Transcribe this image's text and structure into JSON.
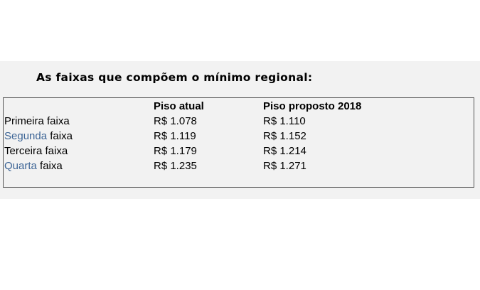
{
  "title": "As faixas que compõem o mínimo regional:",
  "table": {
    "headers": [
      "",
      "Piso atual",
      "Piso proposto 2018"
    ],
    "rows": [
      {
        "link": "",
        "label": "Primeira faixa",
        "atual": "R$ 1.078",
        "proposto": "R$ 1.110"
      },
      {
        "link": "Segunda",
        "label": " faixa",
        "atual": "R$ 1.119",
        "proposto": "R$ 1.152"
      },
      {
        "link": "",
        "label": "Terceira faixa",
        "atual": "R$ 1.179",
        "proposto": "R$ 1.214"
      },
      {
        "link": "Quarta",
        "label": " faixa",
        "atual": "R$ 1.235",
        "proposto": "R$ 1.271"
      }
    ]
  },
  "colors": {
    "link": "#3d6596",
    "panel": "#f2f2f2"
  }
}
